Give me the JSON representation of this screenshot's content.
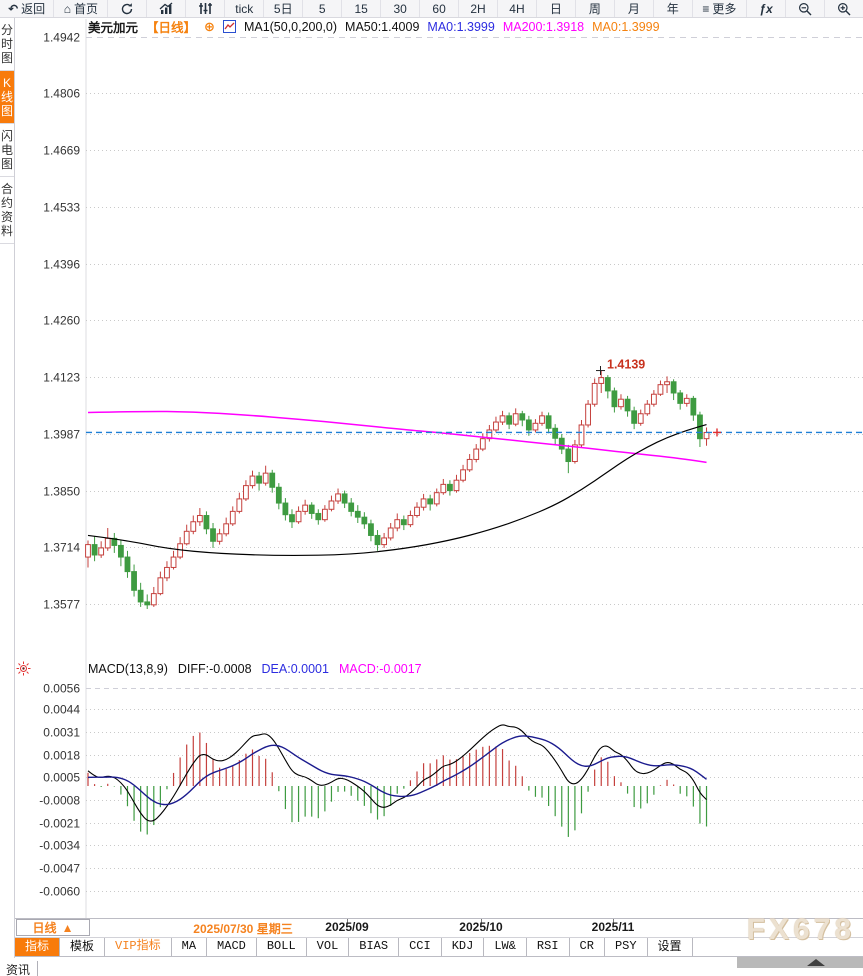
{
  "toolbar": {
    "items": [
      {
        "name": "back",
        "glyph": "↶",
        "label": "返回",
        "wide": true
      },
      {
        "name": "home",
        "glyph": "⌂",
        "label": "首页",
        "wide": true
      },
      {
        "name": "refresh",
        "icon": "refresh-icon",
        "label": ""
      },
      {
        "name": "trend-chart",
        "icon": "trend-chart-icon",
        "label": ""
      },
      {
        "name": "kline-style",
        "icon": "kline-icon",
        "label": ""
      },
      {
        "name": "tick",
        "label": "tick"
      },
      {
        "name": "5d",
        "label": "5日"
      },
      {
        "name": "5",
        "label": "5"
      },
      {
        "name": "15",
        "label": "15"
      },
      {
        "name": "30",
        "label": "30"
      },
      {
        "name": "60",
        "label": "60"
      },
      {
        "name": "2h",
        "label": "2H"
      },
      {
        "name": "4h",
        "label": "4H"
      },
      {
        "name": "day",
        "label": "日"
      },
      {
        "name": "week",
        "label": "周"
      },
      {
        "name": "month",
        "label": "月"
      },
      {
        "name": "year",
        "label": "年"
      },
      {
        "name": "more",
        "glyph": "≡",
        "label": "更多",
        "wide": true
      },
      {
        "name": "fx",
        "label": "ƒx",
        "fx": true
      },
      {
        "name": "zoom-out",
        "icon": "zoom-out-icon",
        "label": ""
      },
      {
        "name": "zoom-in",
        "icon": "zoom-in-icon",
        "label": ""
      }
    ]
  },
  "sidebar": {
    "items": [
      {
        "label": "分时图",
        "active": false
      },
      {
        "label": "K线图",
        "active": true
      },
      {
        "label": "闪电图",
        "active": false
      },
      {
        "label": "合约资料",
        "active": false
      }
    ]
  },
  "main_header": {
    "symbol": "美元加元",
    "period": "【日线】",
    "plus": "⊕",
    "ma_settings": "MA1(50,0,200,0)",
    "ma50": "MA50:1.4009",
    "ma0_blue": "MA0:1.3999",
    "ma200": "MA200:1.3918",
    "ma0_orange": "MA0:1.3999"
  },
  "macd_header": {
    "title": "MACD(13,8,9)",
    "diff": "DIFF:-0.0008",
    "dea": "DEA:0.0001",
    "macd": "MACD:-0.0017"
  },
  "x_axis": {
    "labels": [
      {
        "text": "2025/07/30 星期三",
        "highlight": true
      },
      {
        "text": "2025/09",
        "highlight": false
      },
      {
        "text": "2025/10",
        "highlight": false
      },
      {
        "text": "2025/11",
        "highlight": false
      }
    ]
  },
  "bottom": {
    "period_label": "日线",
    "period_arrow": "▲",
    "tabs": [
      {
        "label": "指标",
        "active": true,
        "mono": false,
        "vip": false
      },
      {
        "label": "模板",
        "active": false,
        "mono": false,
        "vip": false
      },
      {
        "label": "VIP指标",
        "active": false,
        "mono": true,
        "vip": true
      },
      {
        "label": "MA",
        "active": false,
        "mono": true,
        "vip": false
      },
      {
        "label": "MACD",
        "active": false,
        "mono": true,
        "vip": false
      },
      {
        "label": "BOLL",
        "active": false,
        "mono": true,
        "vip": false
      },
      {
        "label": "VOL",
        "active": false,
        "mono": true,
        "vip": false
      },
      {
        "label": "BIAS",
        "active": false,
        "mono": true,
        "vip": false
      },
      {
        "label": "CCI",
        "active": false,
        "mono": true,
        "vip": false
      },
      {
        "label": "KDJ",
        "active": false,
        "mono": true,
        "vip": false
      },
      {
        "label": "LW&",
        "active": false,
        "mono": true,
        "vip": false
      },
      {
        "label": "RSI",
        "active": false,
        "mono": true,
        "vip": false
      },
      {
        "label": "CR",
        "active": false,
        "mono": true,
        "vip": false
      },
      {
        "label": "PSY",
        "active": false,
        "mono": true,
        "vip": false
      },
      {
        "label": "设置",
        "active": false,
        "mono": false,
        "vip": false
      }
    ],
    "news_label": "资讯",
    "watermark": "FX678"
  },
  "colors": {
    "accent_orange": "#f87b0b",
    "candle_up": "#c5403d",
    "candle_down": "#3e9b41",
    "ma200_line": "#ff00ff",
    "ma50_line": "#000000",
    "price_line_blue": "#1e7fd6",
    "dea_line": "#1b1b8e",
    "annotation_red": "#c8321e"
  },
  "chart_data": {
    "type": "candlestick+macd",
    "title": "美元加元 日线",
    "price_y_ticks": [
      "1.4942",
      "1.4806",
      "1.4669",
      "1.4533",
      "1.4396",
      "1.4260",
      "1.4123",
      "1.3987",
      "1.3850",
      "1.3714",
      "1.3577"
    ],
    "macd_y_ticks": [
      "0.0056",
      "0.0044",
      "0.0031",
      "0.0018",
      "0.0005",
      "-0.0008",
      "-0.0021",
      "-0.0034",
      "-0.0047",
      "-0.0060"
    ],
    "annotation": {
      "text": "1.4139",
      "price": 1.4139
    },
    "current_price": 1.399,
    "candles": [
      [
        1.369,
        1.373,
        1.3665,
        1.372
      ],
      [
        1.372,
        1.374,
        1.368,
        1.3695
      ],
      [
        1.3695,
        1.3728,
        1.3688,
        1.3712
      ],
      [
        1.3712,
        1.376,
        1.3705,
        1.3735
      ],
      [
        1.3735,
        1.3748,
        1.37,
        1.3718
      ],
      [
        1.3718,
        1.373,
        1.3668,
        1.369
      ],
      [
        1.369,
        1.3705,
        1.364,
        1.3655
      ],
      [
        1.3655,
        1.3672,
        1.3595,
        1.361
      ],
      [
        1.361,
        1.3628,
        1.357,
        1.3582
      ],
      [
        1.3582,
        1.36,
        1.3565,
        1.3575
      ],
      [
        1.3575,
        1.3618,
        1.357,
        1.3602
      ],
      [
        1.3602,
        1.3655,
        1.3598,
        1.364
      ],
      [
        1.364,
        1.368,
        1.3632,
        1.3665
      ],
      [
        1.3665,
        1.3705,
        1.366,
        1.369
      ],
      [
        1.369,
        1.3738,
        1.3685,
        1.3722
      ],
      [
        1.3722,
        1.3768,
        1.3718,
        1.3752
      ],
      [
        1.3752,
        1.379,
        1.3745,
        1.3775
      ],
      [
        1.3775,
        1.3808,
        1.3765,
        1.379
      ],
      [
        1.379,
        1.38,
        1.3745,
        1.3758
      ],
      [
        1.3758,
        1.3772,
        1.3712,
        1.3728
      ],
      [
        1.3728,
        1.3758,
        1.372,
        1.3746
      ],
      [
        1.3746,
        1.3785,
        1.374,
        1.377
      ],
      [
        1.377,
        1.3812,
        1.3765,
        1.38
      ],
      [
        1.38,
        1.3845,
        1.3795,
        1.383
      ],
      [
        1.383,
        1.3875,
        1.3825,
        1.3862
      ],
      [
        1.3862,
        1.3898,
        1.3855,
        1.3885
      ],
      [
        1.3885,
        1.3895,
        1.385,
        1.3868
      ],
      [
        1.3868,
        1.391,
        1.3862,
        1.3892
      ],
      [
        1.3892,
        1.39,
        1.3845,
        1.3858
      ],
      [
        1.3858,
        1.3868,
        1.3805,
        1.382
      ],
      [
        1.382,
        1.3832,
        1.3778,
        1.3792
      ],
      [
        1.3792,
        1.3805,
        1.376,
        1.3775
      ],
      [
        1.3775,
        1.3812,
        1.377,
        1.38
      ],
      [
        1.38,
        1.3828,
        1.3792,
        1.3815
      ],
      [
        1.3815,
        1.3822,
        1.3782,
        1.3795
      ],
      [
        1.3795,
        1.3805,
        1.3768,
        1.378
      ],
      [
        1.378,
        1.3815,
        1.3775,
        1.3805
      ],
      [
        1.3805,
        1.3838,
        1.38,
        1.3825
      ],
      [
        1.3825,
        1.3855,
        1.3818,
        1.3842
      ],
      [
        1.3842,
        1.385,
        1.3808,
        1.382
      ],
      [
        1.382,
        1.3832,
        1.3788,
        1.38
      ],
      [
        1.38,
        1.3815,
        1.3772,
        1.3786
      ],
      [
        1.3786,
        1.3798,
        1.3758,
        1.377
      ],
      [
        1.377,
        1.378,
        1.3728,
        1.3742
      ],
      [
        1.3742,
        1.3755,
        1.3705,
        1.372
      ],
      [
        1.372,
        1.3748,
        1.3712,
        1.3736
      ],
      [
        1.3736,
        1.3772,
        1.373,
        1.376
      ],
      [
        1.376,
        1.3795,
        1.3752,
        1.378
      ],
      [
        1.378,
        1.379,
        1.3755,
        1.3768
      ],
      [
        1.3768,
        1.3802,
        1.3762,
        1.379
      ],
      [
        1.379,
        1.3822,
        1.3785,
        1.381
      ],
      [
        1.381,
        1.3842,
        1.3802,
        1.383
      ],
      [
        1.383,
        1.384,
        1.3802,
        1.3818
      ],
      [
        1.3818,
        1.3855,
        1.3812,
        1.3845
      ],
      [
        1.3845,
        1.3878,
        1.384,
        1.3865
      ],
      [
        1.3865,
        1.3875,
        1.3838,
        1.385
      ],
      [
        1.385,
        1.3888,
        1.3845,
        1.3875
      ],
      [
        1.3875,
        1.3912,
        1.387,
        1.39
      ],
      [
        1.39,
        1.3938,
        1.3895,
        1.3925
      ],
      [
        1.3925,
        1.3962,
        1.3918,
        1.395
      ],
      [
        1.395,
        1.3988,
        1.3945,
        1.3975
      ],
      [
        1.3975,
        1.4008,
        1.3968,
        1.3996
      ],
      [
        1.3996,
        1.4028,
        1.399,
        1.4015
      ],
      [
        1.4015,
        1.4042,
        1.4008,
        1.403
      ],
      [
        1.403,
        1.4038,
        1.3998,
        1.401
      ],
      [
        1.401,
        1.4048,
        1.4005,
        1.4035
      ],
      [
        1.4035,
        1.4042,
        1.4005,
        1.402
      ],
      [
        1.402,
        1.403,
        1.3982,
        1.3996
      ],
      [
        1.3996,
        1.4022,
        1.399,
        1.4012
      ],
      [
        1.4012,
        1.404,
        1.4006,
        1.403
      ],
      [
        1.403,
        1.4038,
        1.3988,
        1.4
      ],
      [
        1.4,
        1.401,
        1.3962,
        1.3976
      ],
      [
        1.3976,
        1.3986,
        1.3938,
        1.395
      ],
      [
        1.395,
        1.396,
        1.3892,
        1.392
      ],
      [
        1.392,
        1.3972,
        1.3915,
        1.396
      ],
      [
        1.396,
        1.402,
        1.3955,
        1.4008
      ],
      [
        1.4008,
        1.4068,
        1.4002,
        1.4058
      ],
      [
        1.4058,
        1.412,
        1.4052,
        1.4108
      ],
      [
        1.4108,
        1.4139,
        1.4085,
        1.4122
      ],
      [
        1.4122,
        1.4128,
        1.4072,
        1.409
      ],
      [
        1.409,
        1.4098,
        1.4038,
        1.4052
      ],
      [
        1.4052,
        1.4082,
        1.4045,
        1.407
      ],
      [
        1.407,
        1.4078,
        1.4028,
        1.4042
      ],
      [
        1.4042,
        1.4052,
        1.3998,
        1.4012
      ],
      [
        1.4012,
        1.4045,
        1.4006,
        1.4035
      ],
      [
        1.4035,
        1.4068,
        1.403,
        1.4058
      ],
      [
        1.4058,
        1.4092,
        1.4052,
        1.4082
      ],
      [
        1.4082,
        1.4115,
        1.4078,
        1.4105
      ],
      [
        1.4105,
        1.4125,
        1.4085,
        1.4112
      ],
      [
        1.4112,
        1.4118,
        1.4068,
        1.4085
      ],
      [
        1.4085,
        1.4092,
        1.4045,
        1.406
      ],
      [
        1.406,
        1.4082,
        1.4052,
        1.4072
      ],
      [
        1.4072,
        1.4078,
        1.4018,
        1.4032
      ],
      [
        1.4032,
        1.404,
        1.3955,
        1.3975
      ],
      [
        1.3975,
        1.4002,
        1.3958,
        1.399
      ]
    ],
    "ma50_points": [
      [
        0,
        1.3742
      ],
      [
        6,
        1.373
      ],
      [
        12,
        1.371
      ],
      [
        20,
        1.3698
      ],
      [
        30,
        1.3693
      ],
      [
        40,
        1.3696
      ],
      [
        48,
        1.371
      ],
      [
        55,
        1.373
      ],
      [
        61,
        1.3755
      ],
      [
        66,
        1.3782
      ],
      [
        71,
        1.3815
      ],
      [
        75,
        1.3852
      ],
      [
        79,
        1.3895
      ],
      [
        82,
        1.3928
      ],
      [
        85,
        1.3955
      ],
      [
        88,
        1.3978
      ],
      [
        91,
        1.3995
      ],
      [
        94,
        1.4009
      ]
    ],
    "ma200_points": [
      [
        0,
        1.4038
      ],
      [
        8,
        1.4041
      ],
      [
        16,
        1.404
      ],
      [
        24,
        1.4032
      ],
      [
        32,
        1.4022
      ],
      [
        40,
        1.401
      ],
      [
        48,
        1.3997
      ],
      [
        53,
        1.399
      ],
      [
        58,
        1.3982
      ],
      [
        64,
        1.3972
      ],
      [
        70,
        1.3962
      ],
      [
        76,
        1.3952
      ],
      [
        82,
        1.3941
      ],
      [
        87,
        1.3933
      ],
      [
        91,
        1.3925
      ],
      [
        94,
        1.3918
      ]
    ],
    "macd_seed": {
      "ema8": 1.3718,
      "ema13": 1.3708,
      "dea": 0.0004
    }
  }
}
